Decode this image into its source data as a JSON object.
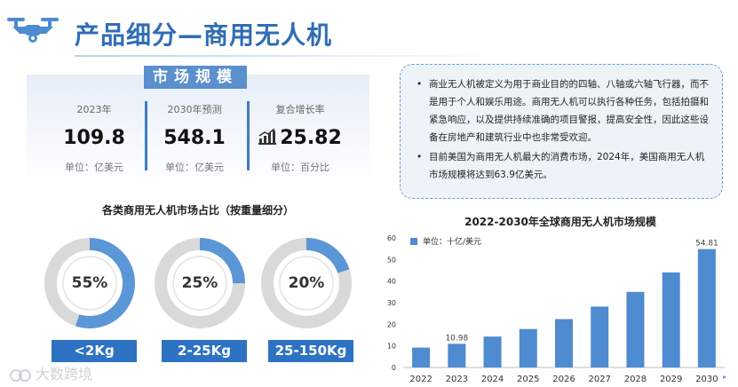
{
  "header": {
    "title": "产品细分—商用无人机"
  },
  "market_size": {
    "tag": "市场规模",
    "stats": [
      {
        "label": "2023年",
        "value": "109.8",
        "unit": "单位：亿美元"
      },
      {
        "label": "2030年预测",
        "value": "548.1",
        "unit": "单位：亿美元"
      },
      {
        "label": "复合增长率",
        "value": "25.82",
        "unit": "单位：百分比"
      }
    ]
  },
  "description": [
    "商业无人机被定义为用于商业目的的四轴、八轴或六轴飞行器，而不是用于个人和娱乐用途。商用无人机可以执行各种任务，包括拍摄和紧急响应，以及提供持续准确的项目警报，提高安全性，因此这些设备在房地产和建筑行业中也非常受欢迎。",
    "目前美国为商用无人机最大的消费市场，2024年，美国商用无人机市场规模将达到63.9亿美元。"
  ],
  "donut_section": {
    "title": "各类商用无人机市场占比（按重量细分）"
  },
  "watermark": "大数跨境",
  "colors": {
    "accent": "#2e72c4",
    "bar": "#4f8bd0",
    "donut_track": "#d9d9d9",
    "donut_fill": "#5b96d6"
  },
  "chart_data": [
    {
      "type": "pie",
      "title": "各类商用无人机市场占比（按重量细分）",
      "categories": [
        "<2Kg",
        "2-25Kg",
        "25-150Kg"
      ],
      "values": [
        55,
        25,
        20
      ],
      "labels": [
        "55%",
        "25%",
        "20%"
      ]
    },
    {
      "type": "bar",
      "title": "2022-2030年全球商用无人机市场规模",
      "legend": "单位：十亿/美元",
      "legend_position": "top-left",
      "categories": [
        "2022",
        "2023",
        "2024",
        "2025",
        "2026",
        "2027",
        "2028",
        "2029",
        "2030"
      ],
      "values": [
        9.2,
        10.98,
        14.3,
        17.8,
        22.4,
        28.2,
        35.0,
        44.0,
        54.81
      ],
      "data_labels": {
        "2023": "10.98",
        "2030": "54.81"
      },
      "ylim": [
        0,
        60
      ],
      "yticks": [
        "0",
        "10",
        "20",
        "30",
        "40",
        "50",
        "60"
      ],
      "grid": false
    }
  ]
}
